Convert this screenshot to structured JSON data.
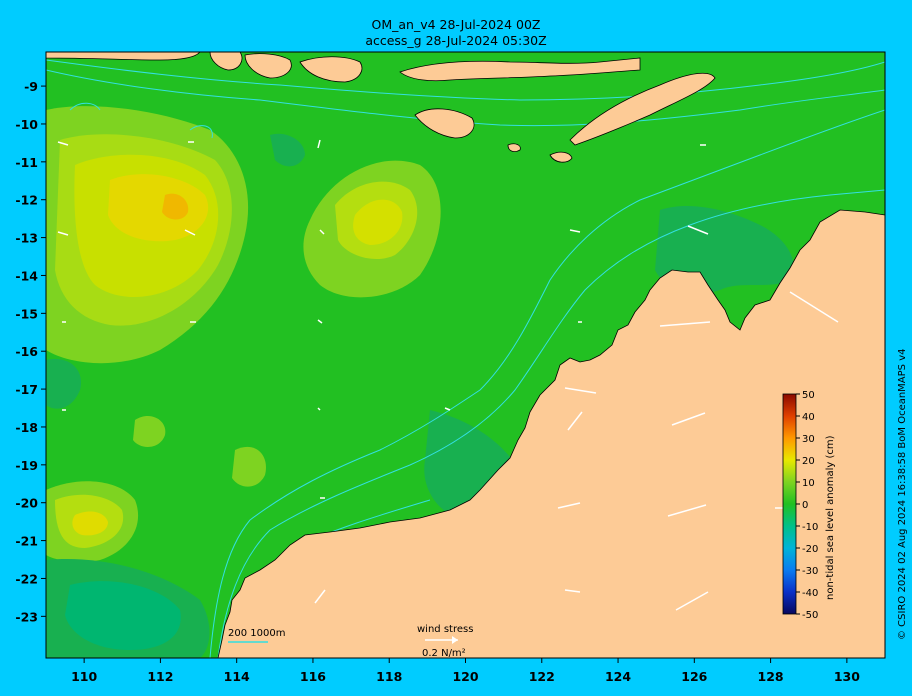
{
  "header": {
    "line1": "OM_an_v4  28-Jul-2024 00Z",
    "line2": "access_g 28-Jul-2024 05:30Z"
  },
  "axes": {
    "x_ticks": [
      "110",
      "112",
      "114",
      "116",
      "118",
      "120",
      "122",
      "124",
      "126",
      "128",
      "130"
    ],
    "y_ticks": [
      "-9",
      "-10",
      "-11",
      "-12",
      "-13",
      "-14",
      "-15",
      "-16",
      "-17",
      "-18",
      "-19",
      "-20",
      "-21",
      "-22",
      "-23"
    ],
    "lon_range": [
      109,
      131
    ],
    "lat_range": [
      -24.1,
      -8.1
    ]
  },
  "colorbar": {
    "label": "non-tidal sea level anomaly (cm)",
    "ticks": [
      "50",
      "40",
      "30",
      "20",
      "10",
      "0",
      "-10",
      "-20",
      "-30",
      "-40",
      "-50"
    ],
    "range": [
      -50,
      50
    ]
  },
  "legend": {
    "contours": "200  1000m",
    "wind_stress_title": "wind stress",
    "wind_stress_value": "0.2 N/m²"
  },
  "copyright": "© CSIRO 2024   02 Aug 2024 16:38:58 BoM OceanMAPS v4",
  "colors": {
    "background": "#00ccff",
    "land": "#fdcb96",
    "ocean_base": "#22c022",
    "contour": "#33e0e0",
    "high_anomaly": "#ffcc00",
    "low_anomaly": "#00b66e"
  }
}
